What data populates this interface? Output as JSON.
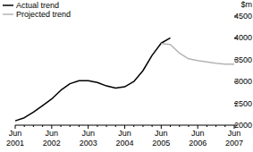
{
  "chart_data": {
    "type": "line",
    "y_label": "$m",
    "categories": [
      "Jun 2001",
      null,
      null,
      null,
      "Jun 2002",
      null,
      null,
      null,
      "Jun 2003",
      null,
      null,
      null,
      "Jun 2004",
      null,
      null,
      null,
      "Jun 2005",
      null,
      null,
      null,
      "Jun 2006",
      null,
      null,
      null,
      "Jun 2007"
    ],
    "series": [
      {
        "name": "Actual trend",
        "color": "#000000",
        "values": [
          2100,
          2170,
          2300,
          2450,
          2600,
          2800,
          2950,
          3020,
          3020,
          2980,
          2900,
          2850,
          2880,
          3000,
          3250,
          3600,
          3880,
          4000,
          null,
          null,
          null,
          null,
          null,
          null,
          null
        ]
      },
      {
        "name": "Projected trend",
        "color": "#b4b4b4",
        "values": [
          null,
          null,
          null,
          null,
          null,
          null,
          null,
          null,
          null,
          null,
          null,
          null,
          null,
          null,
          null,
          null,
          3870,
          3850,
          3650,
          3520,
          3480,
          3450,
          3420,
          3400,
          3400
        ]
      }
    ],
    "ylim": [
      2000,
      4500
    ],
    "yticks": [
      2000,
      2500,
      3000,
      3500,
      4000,
      4500
    ],
    "legend": "top-left",
    "grid": false
  }
}
